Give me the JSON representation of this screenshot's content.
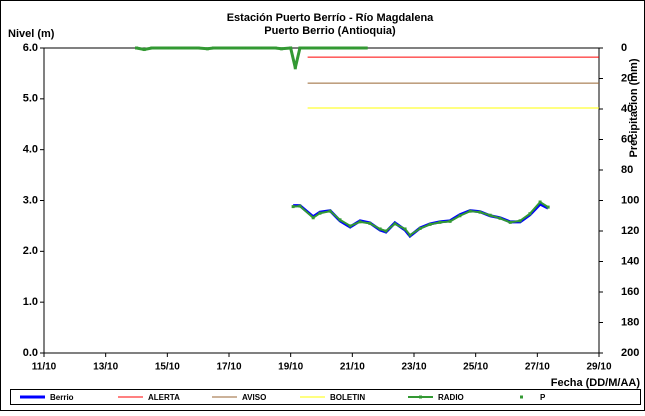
{
  "chart_data": {
    "type": "line",
    "title": "Estación Puerto Berrío - Río Magdalena",
    "subtitle": "Puerto Berrio (Antioquia)",
    "y_label": "Nivel (m)",
    "y2_label": "Precipitacion (mm)",
    "x_label": "Fecha (DD/M/AA)",
    "xlim": [
      11,
      29
    ],
    "xticks": [
      {
        "value": 11,
        "label": "11/10"
      },
      {
        "value": 13,
        "label": "13/10"
      },
      {
        "value": 15,
        "label": "15/10"
      },
      {
        "value": 17,
        "label": "17/10"
      },
      {
        "value": 19,
        "label": "19/10"
      },
      {
        "value": 21,
        "label": "21/10"
      },
      {
        "value": 23,
        "label": "23/10"
      },
      {
        "value": 25,
        "label": "25/10"
      },
      {
        "value": 27,
        "label": "27/10"
      },
      {
        "value": 29,
        "label": "29/10"
      }
    ],
    "ylim": [
      0,
      6
    ],
    "yticks": [
      {
        "value": 0,
        "label": "0.0"
      },
      {
        "value": 1,
        "label": "1.0"
      },
      {
        "value": 2,
        "label": "2.0"
      },
      {
        "value": 3,
        "label": "3.0"
      },
      {
        "value": 4,
        "label": "4.0"
      },
      {
        "value": 5,
        "label": "5.0"
      },
      {
        "value": 6,
        "label": "6.0"
      }
    ],
    "y2lim": [
      200,
      0
    ],
    "y2ticks": [
      0,
      20,
      40,
      60,
      80,
      100,
      120,
      140,
      160,
      180,
      200
    ],
    "grid": false,
    "legend": "bottom",
    "series": [
      {
        "name": "Berrio",
        "color": "#0000ff",
        "width": 3,
        "x": [
          19.08,
          19.3,
          19.73,
          19.95,
          20.28,
          20.6,
          20.93,
          21.25,
          21.57,
          21.9,
          22.09,
          22.38,
          22.71,
          22.87,
          23.2,
          23.52,
          23.84,
          24.17,
          24.49,
          24.82,
          25.14,
          25.47,
          25.79,
          26.12,
          26.44,
          26.76,
          27.09,
          27.35
        ],
        "values": [
          2.9,
          2.9,
          2.68,
          2.77,
          2.8,
          2.6,
          2.48,
          2.6,
          2.56,
          2.42,
          2.38,
          2.56,
          2.42,
          2.3,
          2.46,
          2.54,
          2.58,
          2.6,
          2.72,
          2.8,
          2.78,
          2.7,
          2.66,
          2.58,
          2.58,
          2.72,
          2.93,
          2.85
        ]
      },
      {
        "name": "ALERTA",
        "color": "#ff0000",
        "width": 1,
        "x": [
          19.55,
          29
        ],
        "values": [
          5.82,
          5.82
        ]
      },
      {
        "name": "AVISO",
        "color": "#996633",
        "width": 1,
        "x": [
          19.55,
          29
        ],
        "values": [
          5.31,
          5.31
        ]
      },
      {
        "name": "BOLETIN",
        "color": "#ffff00",
        "width": 1,
        "x": [
          19.55,
          29
        ],
        "values": [
          4.82,
          4.82
        ]
      },
      {
        "name": "RADIO",
        "color": "#339933",
        "width": 2,
        "markers": true,
        "x": [
          19.08,
          19.3,
          19.73,
          19.95,
          20.28,
          20.6,
          20.93,
          21.25,
          21.57,
          21.9,
          22.09,
          22.38,
          22.71,
          22.87,
          23.2,
          23.52,
          23.84,
          24.17,
          24.49,
          24.82,
          25.14,
          25.47,
          25.79,
          26.12,
          26.44,
          26.76,
          27.09,
          27.35
        ],
        "values": [
          2.88,
          2.89,
          2.66,
          2.75,
          2.79,
          2.62,
          2.5,
          2.58,
          2.55,
          2.44,
          2.4,
          2.54,
          2.44,
          2.32,
          2.45,
          2.53,
          2.57,
          2.59,
          2.7,
          2.79,
          2.77,
          2.71,
          2.65,
          2.57,
          2.6,
          2.74,
          2.97,
          2.87
        ]
      },
      {
        "name": "P",
        "color": "#339933",
        "width": 3,
        "markers": true,
        "axis": "y2",
        "x": [
          14.0,
          14.25,
          14.5,
          15,
          15.5,
          16,
          16.3,
          16.5,
          17,
          17.5,
          18,
          18.5,
          18.7,
          19,
          19.15,
          19.3,
          19.5,
          20,
          20.5,
          21,
          21.45
        ],
        "values": [
          0,
          1,
          0,
          0,
          0,
          0,
          0.5,
          0,
          0,
          0,
          0,
          0,
          0.5,
          0,
          13,
          0,
          0,
          0,
          0,
          0,
          0
        ]
      }
    ]
  }
}
